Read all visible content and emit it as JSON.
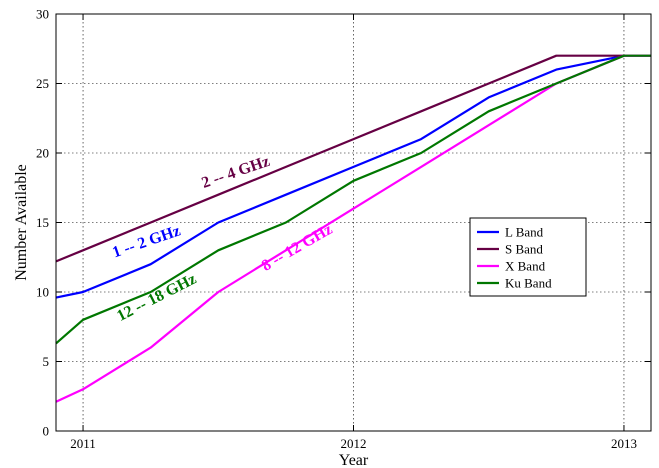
{
  "chart_data": {
    "type": "line",
    "xlabel": "Year",
    "ylabel": "Number Available",
    "xlim": [
      2010.9,
      2013.1
    ],
    "ylim": [
      0,
      30
    ],
    "x_ticks": [
      2011,
      2012,
      2013
    ],
    "y_ticks": [
      0,
      5,
      10,
      15,
      20,
      25,
      30
    ],
    "grid": true,
    "legend_position": "center-right",
    "series": [
      {
        "name": "L Band",
        "color": "#0000ff",
        "points": [
          [
            2010.9,
            9.6
          ],
          [
            2011.0,
            10.0
          ],
          [
            2011.25,
            12.0
          ],
          [
            2011.5,
            15.0
          ],
          [
            2011.75,
            17.0
          ],
          [
            2012.0,
            19.0
          ],
          [
            2012.25,
            21.0
          ],
          [
            2012.5,
            24.0
          ],
          [
            2012.75,
            26.0
          ],
          [
            2013.0,
            27.0
          ],
          [
            2013.1,
            27.0
          ]
        ]
      },
      {
        "name": "S Band",
        "color": "#660044",
        "points": [
          [
            2010.9,
            12.2
          ],
          [
            2011.0,
            13.0
          ],
          [
            2011.25,
            15.0
          ],
          [
            2011.5,
            17.0
          ],
          [
            2011.75,
            19.0
          ],
          [
            2012.0,
            21.0
          ],
          [
            2012.25,
            23.0
          ],
          [
            2012.5,
            25.0
          ],
          [
            2012.75,
            27.0
          ],
          [
            2013.0,
            27.0
          ],
          [
            2013.1,
            27.0
          ]
        ]
      },
      {
        "name": "X Band",
        "color": "#ff00ff",
        "points": [
          [
            2010.9,
            2.1
          ],
          [
            2011.0,
            3.0
          ],
          [
            2011.25,
            6.0
          ],
          [
            2011.5,
            10.0
          ],
          [
            2011.75,
            13.0
          ],
          [
            2012.0,
            16.0
          ],
          [
            2012.25,
            19.0
          ],
          [
            2012.5,
            22.0
          ],
          [
            2012.75,
            25.0
          ],
          [
            2013.0,
            27.0
          ],
          [
            2013.1,
            27.0
          ]
        ]
      },
      {
        "name": "Ku Band",
        "color": "#007700",
        "points": [
          [
            2010.9,
            6.3
          ],
          [
            2011.0,
            8.0
          ],
          [
            2011.25,
            10.0
          ],
          [
            2011.5,
            13.0
          ],
          [
            2011.75,
            15.0
          ],
          [
            2012.0,
            18.0
          ],
          [
            2012.25,
            20.0
          ],
          [
            2012.5,
            23.0
          ],
          [
            2012.75,
            25.0
          ],
          [
            2013.0,
            27.0
          ],
          [
            2013.1,
            27.0
          ]
        ]
      }
    ],
    "annotations": [
      {
        "text": "2 -- 4 GHz",
        "color": "#660044",
        "x": 2011.57,
        "y": 18.3,
        "angle": -19
      },
      {
        "text": "1 -- 2 GHz",
        "color": "#0000ff",
        "x": 2011.24,
        "y": 13.3,
        "angle": -19
      },
      {
        "text": "12 -- 18 GHz",
        "color": "#007700",
        "x": 2011.28,
        "y": 9.3,
        "angle": -27
      },
      {
        "text": "8 -- 12 GHz",
        "color": "#ff00ff",
        "x": 2011.8,
        "y": 12.9,
        "angle": -30
      }
    ]
  }
}
